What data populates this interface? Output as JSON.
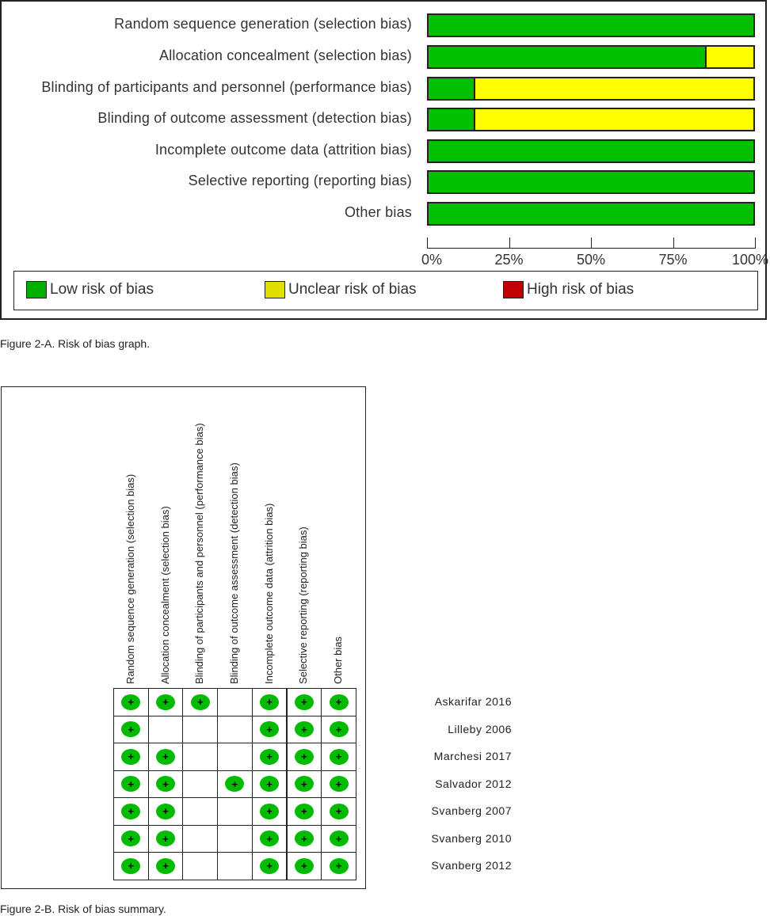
{
  "chart_data": [
    {
      "type": "bar",
      "title": "Risk of bias graph",
      "orientation": "horizontal",
      "stacked": true,
      "categories": [
        "Random sequence generation (selection bias)",
        "Allocation concealment (selection bias)",
        "Blinding of participants and personnel (performance bias)",
        "Blinding of outcome assessment (detection bias)",
        "Incomplete outcome data (attrition bias)",
        "Selective reporting (reporting bias)",
        "Other bias"
      ],
      "series": [
        {
          "name": "Low risk of bias",
          "color": "#00c000",
          "values": [
            100,
            85.7,
            14.3,
            14.3,
            100,
            100,
            100
          ]
        },
        {
          "name": "Unclear risk of bias",
          "color": "#ffff00",
          "values": [
            0,
            14.3,
            85.7,
            85.7,
            0,
            0,
            0
          ]
        },
        {
          "name": "High risk of bias",
          "color": "#c00000",
          "values": [
            0,
            0,
            0,
            0,
            0,
            0,
            0
          ]
        }
      ],
      "xlim": [
        0,
        100
      ],
      "xticks": [
        "0%",
        "25%",
        "50%",
        "75%",
        "100%"
      ],
      "legend": "bottom"
    },
    {
      "type": "table",
      "title": "Risk of bias summary",
      "columns": [
        "Random sequence generation (selection bias)",
        "Allocation concealment (selection bias)",
        "Blinding of participants and personnel (performance bias)",
        "Blinding of outcome assessment (detection bias)",
        "Incomplete outcome data (attrition bias)",
        "Selective reporting (reporting bias)",
        "Other bias"
      ],
      "rows": [
        "Askarifar 2016",
        "Lilleby 2006",
        "Marchesi 2017",
        "Salvador 2012",
        "Svanberg 2007",
        "Svanberg 2010",
        "Svanberg 2012"
      ],
      "symbol": "+",
      "cells": [
        [
          "+",
          "+",
          "+",
          "",
          "+",
          "+",
          "+"
        ],
        [
          "+",
          "",
          "",
          "",
          "+",
          "+",
          "+"
        ],
        [
          "+",
          "+",
          "",
          "",
          "+",
          "+",
          "+"
        ],
        [
          "+",
          "+",
          "",
          "+",
          "+",
          "+",
          "+"
        ],
        [
          "+",
          "+",
          "",
          "",
          "+",
          "+",
          "+"
        ],
        [
          "+",
          "+",
          "",
          "",
          "+",
          "+",
          "+"
        ],
        [
          "+",
          "+",
          "",
          "",
          "+",
          "+",
          "+"
        ]
      ]
    }
  ],
  "captions": {
    "a": "Figure 2-A. Risk of bias graph.",
    "b": "Figure 2-B. Risk of bias summary."
  }
}
